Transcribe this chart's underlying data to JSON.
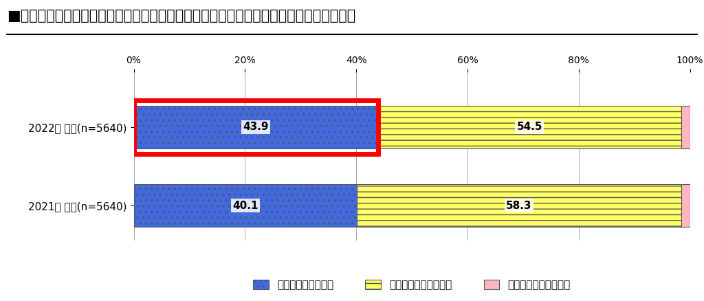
{
  "title": "■新型コロナウイルスの感染拡大前と比べ、あなたの健康に対する意識は高まりましたか",
  "rows": [
    {
      "label": "2022年 全体(n=5640)",
      "values": [
        43.9,
        54.5,
        1.6
      ],
      "highlight": true
    },
    {
      "label": "2021年 全体(n=5640)",
      "values": [
        40.1,
        58.3,
        1.6
      ],
      "highlight": false
    }
  ],
  "colors": [
    "#4169E1",
    "#FFFF66",
    "#FFB6C1"
  ],
  "legend_labels": [
    "健康意識が高まった",
    "健康意識は変わらない",
    "健康意識が低くなった"
  ],
  "legend_colors": [
    "#4169E1",
    "#FFFF66",
    "#FFB6C1"
  ],
  "highlight_color": "#FF0000",
  "x_ticks": [
    0,
    20,
    40,
    60,
    80,
    100
  ],
  "x_tick_labels": [
    "0%",
    "20%",
    "40%",
    "60%",
    "80%",
    "100%"
  ],
  "background_color": "#FFFFFF",
  "title_fontsize": 15,
  "label_fontsize": 11,
  "value_fontsize": 11,
  "legend_fontsize": 11
}
